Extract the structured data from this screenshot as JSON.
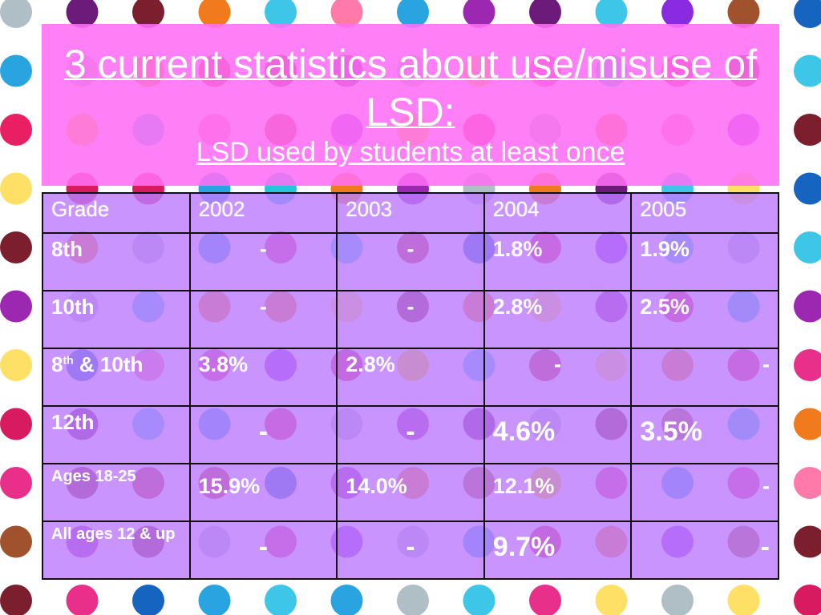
{
  "header": {
    "title": "3 current statistics about use/misuse of LSD:",
    "subtitle": "LSD used by students at least once"
  },
  "table": {
    "columns": [
      "Grade",
      "2002",
      "2003",
      "2004",
      "2005"
    ],
    "rows": [
      {
        "grade": "8th",
        "values": [
          "-",
          "-",
          "1.8%",
          "1.9%"
        ]
      },
      {
        "grade": "10th",
        "values": [
          "-",
          "-",
          "2.8%",
          "2.5%"
        ]
      },
      {
        "grade": "8",
        "grade_sup": "th",
        "grade_rest": " & 10th",
        "values": [
          "3.8%",
          "2.8%",
          "-",
          "-"
        ]
      },
      {
        "grade": "12th",
        "values": [
          "-",
          "-",
          "4.6%",
          "3.5%"
        ]
      },
      {
        "grade": "Ages 18-25",
        "values": [
          "15.9%",
          "14.0%",
          "12.1%",
          "-"
        ]
      },
      {
        "grade": "All ages 12 & up",
        "values": [
          "-",
          "-",
          "9.7%",
          "-"
        ]
      }
    ]
  }
}
